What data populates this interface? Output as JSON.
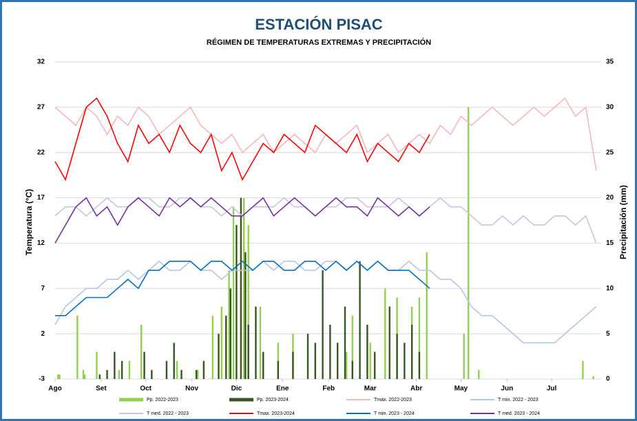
{
  "chart_data": {
    "type": "combo",
    "title": "ESTACIÓN PISAC",
    "subtitle": "RÉGIMEN DE TEMPERATURAS EXTREMAS Y PRECIPITACIÓN",
    "ylabel": "Temperatura (°C)",
    "y2label": "Precipitación (mm)",
    "xlim": [
      0,
      365
    ],
    "xticks": [
      {
        "value": 0,
        "label": "Ago"
      },
      {
        "value": 31,
        "label": "Set"
      },
      {
        "value": 61,
        "label": "Oct"
      },
      {
        "value": 92,
        "label": "Nov"
      },
      {
        "value": 122,
        "label": "Dic"
      },
      {
        "value": 153,
        "label": "Ene"
      },
      {
        "value": 184,
        "label": "Feb"
      },
      {
        "value": 212,
        "label": "Mar"
      },
      {
        "value": 243,
        "label": "Abr"
      },
      {
        "value": 273,
        "label": "May"
      },
      {
        "value": 304,
        "label": "Jun"
      },
      {
        "value": 334,
        "label": "Jul"
      }
    ],
    "ylim": [
      -3,
      32
    ],
    "yticks": [
      -3,
      2,
      7,
      12,
      17,
      22,
      27,
      32
    ],
    "y2lim": [
      0,
      35
    ],
    "y2ticks": [
      0,
      5,
      10,
      15,
      20,
      25,
      30,
      35
    ],
    "grid": true,
    "x": [
      0,
      7,
      14,
      21,
      28,
      35,
      42,
      49,
      56,
      63,
      70,
      77,
      84,
      91,
      98,
      105,
      112,
      119,
      126,
      133,
      140,
      147,
      154,
      161,
      168,
      175,
      182,
      189,
      196,
      203,
      210,
      217,
      224,
      231,
      238,
      245,
      252,
      259,
      266,
      273,
      280,
      287,
      294,
      301,
      308,
      315,
      322,
      329,
      336,
      343,
      350,
      357,
      364
    ],
    "series": [
      {
        "name": "Pp. 2022-2023",
        "type": "bar",
        "axis": "y2",
        "color": "#92d050",
        "x": [
          2,
          3,
          15,
          19,
          20,
          28,
          43,
          50,
          58,
          75,
          82,
          96,
          106,
          112,
          117,
          120,
          127,
          130,
          138,
          150,
          160,
          175,
          196,
          200,
          212,
          222,
          230,
          240,
          245,
          250,
          275,
          278,
          285,
          355,
          362
        ],
        "values": [
          0.5,
          0.5,
          7,
          1,
          0.5,
          3,
          1,
          2,
          6,
          1,
          2,
          1,
          7,
          8,
          12,
          19,
          20,
          17,
          8,
          4,
          5,
          2,
          3,
          7,
          4,
          10,
          9,
          8,
          9,
          14,
          5,
          30,
          1,
          2,
          0.3
        ]
      },
      {
        "name": "Pp. 2023-2024",
        "type": "bar",
        "axis": "y2",
        "color": "#375623",
        "x": [
          30,
          35,
          40,
          45,
          60,
          65,
          75,
          80,
          85,
          95,
          100,
          110,
          115,
          118,
          122,
          125,
          128,
          130,
          135,
          140,
          150,
          160,
          170,
          175,
          180,
          185,
          190,
          195,
          200,
          205,
          210,
          215,
          225,
          230,
          235,
          240,
          245
        ],
        "values": [
          0.5,
          1,
          3,
          2,
          3,
          1,
          2,
          4,
          1,
          1,
          2,
          5,
          7,
          10,
          17,
          20,
          14,
          6,
          8,
          3,
          2,
          3,
          5,
          4,
          12,
          6,
          4,
          8,
          2,
          13,
          6,
          3,
          8,
          5,
          4,
          6,
          3
        ]
      },
      {
        "name": "Tmax. 2022-2023",
        "type": "line",
        "color": "#f4b8b8",
        "values": [
          27,
          26,
          25,
          27,
          26,
          24,
          26,
          25,
          27,
          26,
          24,
          25,
          26,
          27,
          25,
          24,
          23,
          24,
          22,
          23,
          24,
          22,
          23,
          24,
          23,
          22,
          24,
          23,
          24,
          25,
          22,
          23,
          24,
          22,
          23,
          24,
          23,
          25,
          24,
          26,
          25,
          26,
          27,
          26,
          25,
          26,
          27,
          26,
          27,
          28,
          26,
          27,
          20
        ]
      },
      {
        "name": "T min. 2022 - 2023",
        "type": "line",
        "color": "#b4c6e7",
        "values": [
          3,
          5,
          6,
          7,
          7,
          8,
          8,
          9,
          8,
          9,
          10,
          9,
          9,
          10,
          9,
          9,
          8,
          9,
          9,
          9,
          10,
          9,
          10,
          10,
          9,
          9,
          10,
          10,
          9,
          10,
          9,
          10,
          9,
          9,
          10,
          9,
          9,
          8,
          8,
          7,
          5,
          4,
          4,
          3,
          2,
          1,
          1,
          1,
          1,
          2,
          3,
          4,
          5
        ]
      },
      {
        "name": "T med. 2022 - 2023",
        "type": "line",
        "color": "#c9c3e0",
        "values": [
          15,
          16,
          16,
          15,
          16,
          17,
          16,
          16,
          17,
          17,
          16,
          16,
          17,
          17,
          16,
          16,
          15,
          16,
          15,
          16,
          16,
          16,
          17,
          16,
          16,
          15,
          16,
          16,
          17,
          17,
          16,
          16,
          16,
          17,
          16,
          15,
          16,
          17,
          16,
          16,
          15,
          14,
          14,
          15,
          14,
          15,
          14,
          14,
          15,
          15,
          14,
          15,
          12
        ]
      },
      {
        "name": "Tmax. 2023-2024",
        "type": "line",
        "color": "#ff0000",
        "values": [
          21,
          19,
          23,
          27,
          28,
          26,
          23,
          21,
          25,
          23,
          24,
          22,
          25,
          23,
          22,
          24,
          20,
          22,
          19,
          21,
          23,
          22,
          24,
          23,
          22,
          25,
          24,
          23,
          22,
          24,
          21,
          23,
          22,
          21,
          23,
          22,
          24,
          null,
          null,
          null,
          null,
          null,
          null,
          null,
          null,
          null,
          null,
          null,
          null,
          null,
          null,
          null,
          null
        ]
      },
      {
        "name": "T min. 2023 - 2024",
        "type": "line",
        "color": "#0070c0",
        "values": [
          4,
          4,
          5,
          6,
          6,
          6,
          7,
          8,
          7,
          9,
          9,
          10,
          10,
          10,
          9,
          10,
          10,
          9,
          10,
          9,
          10,
          10,
          9,
          9,
          10,
          10,
          9,
          10,
          9,
          10,
          9,
          10,
          9,
          9,
          9,
          8,
          7,
          null,
          null,
          null,
          null,
          null,
          null,
          null,
          null,
          null,
          null,
          null,
          null,
          null,
          null,
          null,
          null
        ]
      },
      {
        "name": "T med. 2023 - 2024",
        "type": "line",
        "color": "#7030a0",
        "values": [
          12,
          14,
          16,
          17,
          15,
          16,
          14,
          16,
          17,
          16,
          15,
          17,
          16,
          17,
          16,
          17,
          16,
          15,
          15,
          16,
          17,
          15,
          16,
          17,
          16,
          15,
          16,
          17,
          16,
          16,
          15,
          17,
          16,
          15,
          16,
          15,
          16,
          null,
          null,
          null,
          null,
          null,
          null,
          null,
          null,
          null,
          null,
          null,
          null,
          null,
          null,
          null,
          null
        ]
      }
    ]
  }
}
